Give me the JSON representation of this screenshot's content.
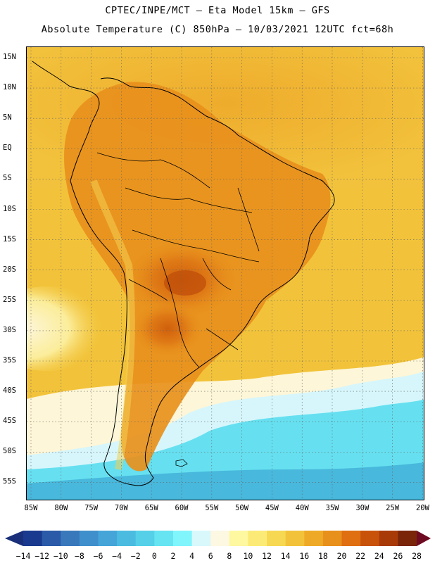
{
  "title_line1": "CPTEC/INPE/MCT –  Eta Model 15km – GFS",
  "title_line2": "Absolute Temperature (C) 850hPa – 10/03/2021 12UTC fct=68h",
  "lat_labels": [
    "15N",
    "10N",
    "5N",
    "EQ",
    "5S",
    "10S",
    "15S",
    "20S",
    "25S",
    "30S",
    "35S",
    "40S",
    "45S",
    "50S",
    "55S"
  ],
  "lon_labels": [
    "85W",
    "80W",
    "75W",
    "70W",
    "65W",
    "60W",
    "55W",
    "50W",
    "45W",
    "40W",
    "35W",
    "30W",
    "25W",
    "20W"
  ],
  "colorbar": {
    "labels": [
      "-14",
      "-12",
      "-10",
      "-8",
      "-6",
      "-4",
      "-2",
      "0",
      "2",
      "4",
      "6",
      "8",
      "10",
      "12",
      "14",
      "16",
      "18",
      "20",
      "22",
      "24",
      "26",
      "28"
    ],
    "colors": [
      "#1a3a8f",
      "#2a5aa8",
      "#3a78bc",
      "#3f8fcc",
      "#45a5d8",
      "#4bbce0",
      "#55d0e8",
      "#66e4f2",
      "#80f5fb",
      "#d8f8fc",
      "#fdf8e2",
      "#fef8a0",
      "#fbeb76",
      "#f6d852",
      "#f2c33a",
      "#eeaa26",
      "#e8901c",
      "#df6f10",
      "#c8520a",
      "#a83a08",
      "#7a2408"
    ],
    "under_color": "#1a2f7a",
    "over_color": "#6e0a22"
  }
}
